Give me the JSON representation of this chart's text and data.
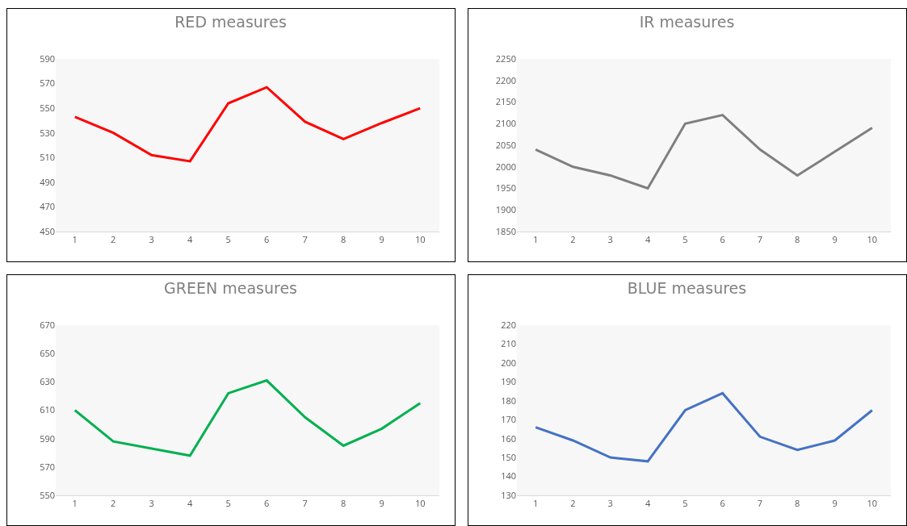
{
  "chart_data": [
    {
      "type": "line",
      "title": "RED measures",
      "categories": [
        "1",
        "2",
        "3",
        "4",
        "5",
        "6",
        "7",
        "8",
        "9",
        "10"
      ],
      "series": [
        {
          "color": "#ff0000",
          "values": [
            543,
            530,
            512,
            507,
            554,
            567,
            539,
            525,
            538,
            550
          ]
        }
      ],
      "ylim": [
        450,
        590
      ],
      "yticks": [
        450,
        470,
        490,
        510,
        530,
        550,
        570,
        590
      ],
      "marker": "none"
    },
    {
      "type": "line",
      "title": "IR measures",
      "categories": [
        "1",
        "2",
        "3",
        "4",
        "5",
        "6",
        "7",
        "8",
        "9",
        "10"
      ],
      "series": [
        {
          "color": "#7f7f7f",
          "values": [
            2040,
            2000,
            1980,
            1950,
            2100,
            2120,
            2040,
            1980,
            2035,
            2090
          ]
        }
      ],
      "ylim": [
        1850,
        2250
      ],
      "yticks": [
        1850,
        1900,
        1950,
        2000,
        2050,
        2100,
        2150,
        2200,
        2250
      ],
      "marker": "none"
    },
    {
      "type": "line",
      "title": "GREEN measures",
      "categories": [
        "1",
        "2",
        "3",
        "4",
        "5",
        "6",
        "7",
        "8",
        "9",
        "10"
      ],
      "series": [
        {
          "color": "#00b050",
          "values": [
            610,
            588,
            583,
            578,
            622,
            631,
            605,
            585,
            597,
            615
          ]
        }
      ],
      "ylim": [
        550,
        670
      ],
      "yticks": [
        550,
        570,
        590,
        610,
        630,
        650,
        670
      ],
      "marker": "none"
    },
    {
      "type": "line",
      "title": "BLUE measures",
      "categories": [
        "1",
        "2",
        "3",
        "4",
        "5",
        "6",
        "7",
        "8",
        "9",
        "10"
      ],
      "series": [
        {
          "color": "#4472c4",
          "values": [
            166,
            159,
            150,
            148,
            175,
            184,
            161,
            154,
            159,
            175
          ]
        }
      ],
      "ylim": [
        130,
        220
      ],
      "yticks": [
        130,
        140,
        150,
        160,
        170,
        180,
        190,
        200,
        210,
        220
      ],
      "marker": "none"
    }
  ]
}
